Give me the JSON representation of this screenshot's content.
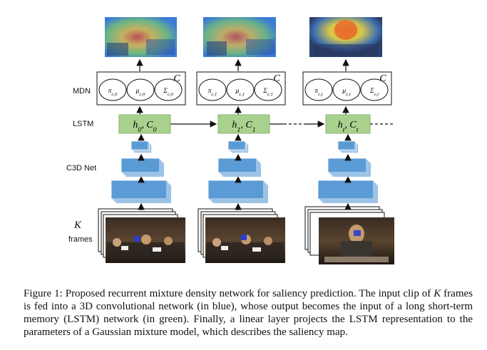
{
  "row_labels": {
    "mdn": "MDN",
    "lstm": "LSTM",
    "c3d": "C3D Net",
    "k": "K",
    "frames": "frames"
  },
  "columns": [
    {
      "mdn_cell_label": "C",
      "params": [
        "π_{c,0}",
        "μ_{c,0}",
        "Σ_{c,0}"
      ],
      "lstm_state": "h_0, C_0"
    },
    {
      "mdn_cell_label": "C",
      "params": [
        "π_{c,1}",
        "μ_{c,1}",
        "Σ_{c,1}"
      ],
      "lstm_state": "h_1, C_1"
    },
    {
      "mdn_cell_label": "C",
      "params": [
        "π_{c,t}",
        "μ_{c,t}",
        "Σ_{c,t}"
      ],
      "lstm_state": "h_t, C_t"
    }
  ],
  "colors": {
    "cnn_blue": "#5b9bd5",
    "lstm_green": "#a9d18e",
    "heat_hot": "#e8452c",
    "heat_warm": "#f2c33a",
    "heat_cool": "#3a7bd5"
  },
  "caption": {
    "label": "Figure 1:",
    "text_1": " Proposed recurrent mixture density network for saliency prediction.  The input clip of ",
    "k": "K",
    "text_2": " frames is fed into a 3D convolutional network (in blue), whose output becomes the input of a long short-term memory (LSTM) network (in green).  Finally, a linear layer projects the LSTM representation to the parameters of a Gaussian mixture model, which describes the saliency map."
  }
}
